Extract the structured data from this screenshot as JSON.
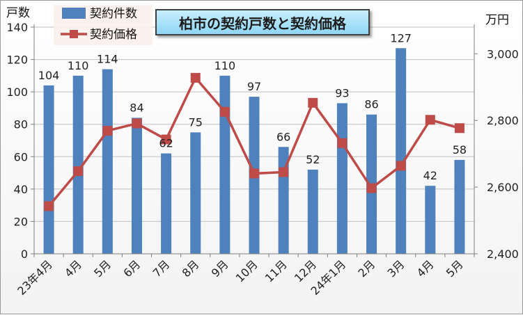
{
  "chart_data": {
    "type": "bar+line",
    "title": "柏市の契約戸数と契約価格",
    "categories": [
      "23年4月",
      "4月",
      "5月",
      "6月",
      "7月",
      "8月",
      "9月",
      "10月",
      "11月",
      "12月",
      "24年1月",
      "2月",
      "3月",
      "4月",
      "5月"
    ],
    "series": [
      {
        "name": "契約件数",
        "type": "bar",
        "axis": "left",
        "color": "#4f81bd",
        "values": [
          104,
          110,
          114,
          84,
          62,
          75,
          110,
          97,
          66,
          52,
          93,
          86,
          127,
          42,
          58
        ]
      },
      {
        "name": "契約価格",
        "type": "line",
        "axis": "right",
        "color": "#be4b48",
        "values": [
          2543,
          2648,
          2769,
          2791,
          2743,
          2928,
          2826,
          2641,
          2645,
          2853,
          2732,
          2597,
          2664,
          2802,
          2777
        ]
      }
    ],
    "ylabel_left": "戸数",
    "ylabel_right": "万円",
    "ylim_left": [
      0,
      140
    ],
    "yticks_left": [
      "0",
      "20",
      "40",
      "60",
      "80",
      "100",
      "120",
      "140"
    ],
    "ylim_right": [
      2400,
      3080
    ],
    "yticks_right": [
      "2,400",
      "2,600",
      "2,800",
      "3,000"
    ],
    "legend_placement": "top-left",
    "grid": "horizontal"
  }
}
